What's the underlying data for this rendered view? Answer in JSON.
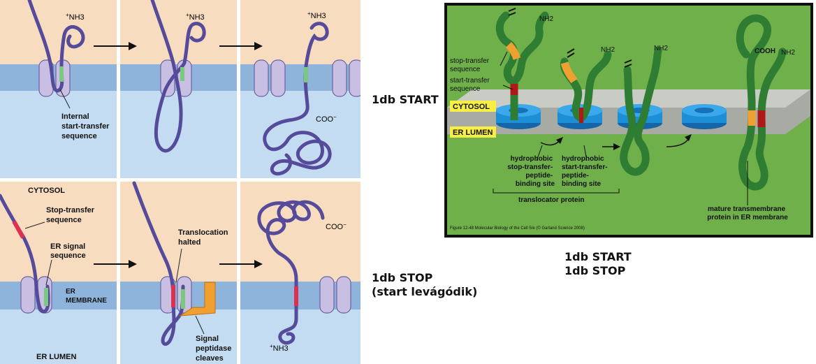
{
  "left_figure": {
    "panel_a1": {
      "nh3": "NH3",
      "nh3_sup": "+",
      "label": [
        "Internal",
        "start-transfer",
        "sequence"
      ]
    },
    "panel_a2": {
      "nh3": "NH3",
      "nh3_sup": "+"
    },
    "panel_a3": {
      "nh3": "NH3",
      "nh3_sup": "+",
      "coo": "COO",
      "coo_sup": "−"
    },
    "panel_b1": {
      "cytosol": "CYTOSOL",
      "stop_label": [
        "Stop-transfer",
        "sequence"
      ],
      "signal_label": [
        "ER signal",
        "sequence"
      ],
      "membrane_label": [
        "ER",
        "MEMBRANE"
      ],
      "lumen_label": "ER LUMEN"
    },
    "panel_b2": {
      "halted_label": [
        "Translocation",
        "halted"
      ],
      "peptidase_label": [
        "Signal",
        "peptidase",
        "cleaves"
      ]
    },
    "panel_b3": {
      "coo": "COO",
      "coo_sup": "−",
      "nh3": "NH3",
      "nh3_sup": "+"
    }
  },
  "notes": {
    "start_only": "1db START",
    "stop_line1": "1db STOP",
    "stop_line2": "(start levágódik)",
    "right_line1": "1db START",
    "right_line2": "1db STOP"
  },
  "right_figure": {
    "nh2": "NH2",
    "cooh": "COOH",
    "stop_label": [
      "stop-transfer",
      "sequence"
    ],
    "start_label": [
      "start-transfer",
      "sequence"
    ],
    "cytosol": "CYTOSOL",
    "lumen": "ER LUMEN",
    "hydro_stop": [
      "hydrophobic",
      "stop-transfer-",
      "peptide-",
      "binding site"
    ],
    "hydro_start": [
      "hydrophobic",
      "start-transfer-",
      "peptide-",
      "binding site"
    ],
    "translocator": "translocator protein",
    "mature": [
      "mature transmembrane",
      "protein in ER membrane"
    ],
    "caption": "Figure 12-48 Molecular Biology of the Cell 5/e (© Garland Science 2008)"
  },
  "colors": {
    "cytosol_bg": "#f8dcc0",
    "membrane": "#8fb4dc",
    "lumen_bg": "#c3dcf1",
    "chain": "#564b9b",
    "translocon": "#c8bfe3",
    "start_seq": "#7bc97f",
    "stop_seq": "#e03050",
    "peptidase": "#f0a030",
    "right_bg": "#6fb04a",
    "right_chain": "#2e7d32",
    "right_translocon": "#1c8fd6",
    "label_yellow": "#f7ef45"
  }
}
